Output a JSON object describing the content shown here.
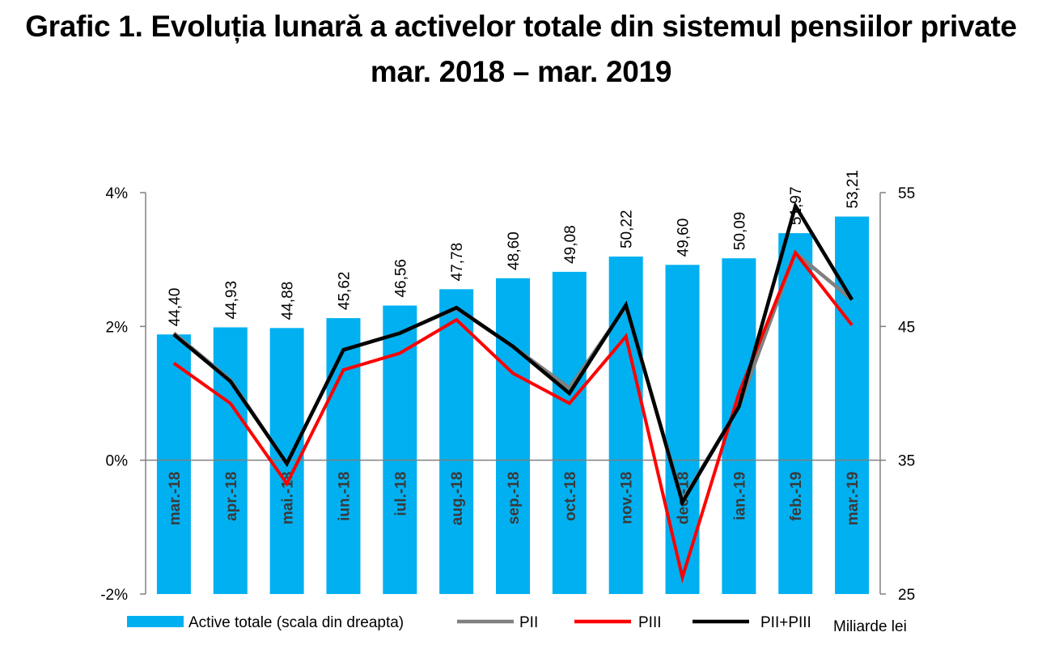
{
  "title": {
    "line1": "Grafic 1. Evoluția lunară a activelor totale din sistemul pensiilor private",
    "line2": "mar. 2018 – mar. 2019"
  },
  "chart_data": {
    "type": "bar",
    "categories": [
      "mar.-18",
      "apr.-18",
      "mai.-18",
      "iun.-18",
      "iul.-18",
      "aug.-18",
      "sep.-18",
      "oct.-18",
      "nov.-18",
      "dec.-18",
      "ian.-19",
      "feb.-19",
      "mar.-19"
    ],
    "bar_series": {
      "name": "Active totale (scala din dreapta)",
      "values": [
        44.4,
        44.93,
        44.88,
        45.62,
        46.56,
        47.78,
        48.6,
        49.08,
        50.22,
        49.6,
        50.09,
        51.97,
        53.21
      ],
      "labels": [
        "44,40",
        "44,93",
        "44,88",
        "45,62",
        "46,56",
        "47,78",
        "48,60",
        "49,08",
        "50,22",
        "49,60",
        "50,09",
        "51,97",
        "53,21"
      ],
      "axis": "right",
      "color": "#00B0F0"
    },
    "line_series": [
      {
        "name": "PII",
        "values": [
          1.9,
          1.2,
          -0.05,
          1.65,
          1.9,
          2.27,
          1.7,
          1.08,
          2.3,
          -0.6,
          0.8,
          3.1,
          2.4
        ],
        "color": "#808080"
      },
      {
        "name": "PIII",
        "values": [
          1.45,
          0.85,
          -0.35,
          1.35,
          1.6,
          2.1,
          1.3,
          0.85,
          1.85,
          -1.75,
          1.0,
          3.1,
          2.02
        ],
        "color": "#FF0000"
      },
      {
        "name": "PII+PIII",
        "values": [
          1.88,
          1.18,
          -0.05,
          1.65,
          1.9,
          2.28,
          1.7,
          1.0,
          2.32,
          -0.63,
          0.8,
          3.8,
          2.4
        ],
        "color": "#000000"
      }
    ],
    "left_axis": {
      "ylim": [
        -2,
        4
      ],
      "ticks": [
        -2,
        0,
        2,
        4
      ],
      "tick_labels": [
        "-2%",
        "0%",
        "2%",
        "4%"
      ]
    },
    "right_axis": {
      "ylim": [
        25,
        55
      ],
      "ticks": [
        25,
        35,
        45,
        55
      ],
      "tick_labels": [
        "25",
        "35",
        "45",
        "55"
      ],
      "unit_label": "Miliarde lei"
    },
    "legend": {
      "placement": "bottom",
      "entries": [
        "Active totale (scala din dreapta)",
        "PII",
        "PIII",
        "PII+PIII"
      ]
    },
    "grid": false
  }
}
